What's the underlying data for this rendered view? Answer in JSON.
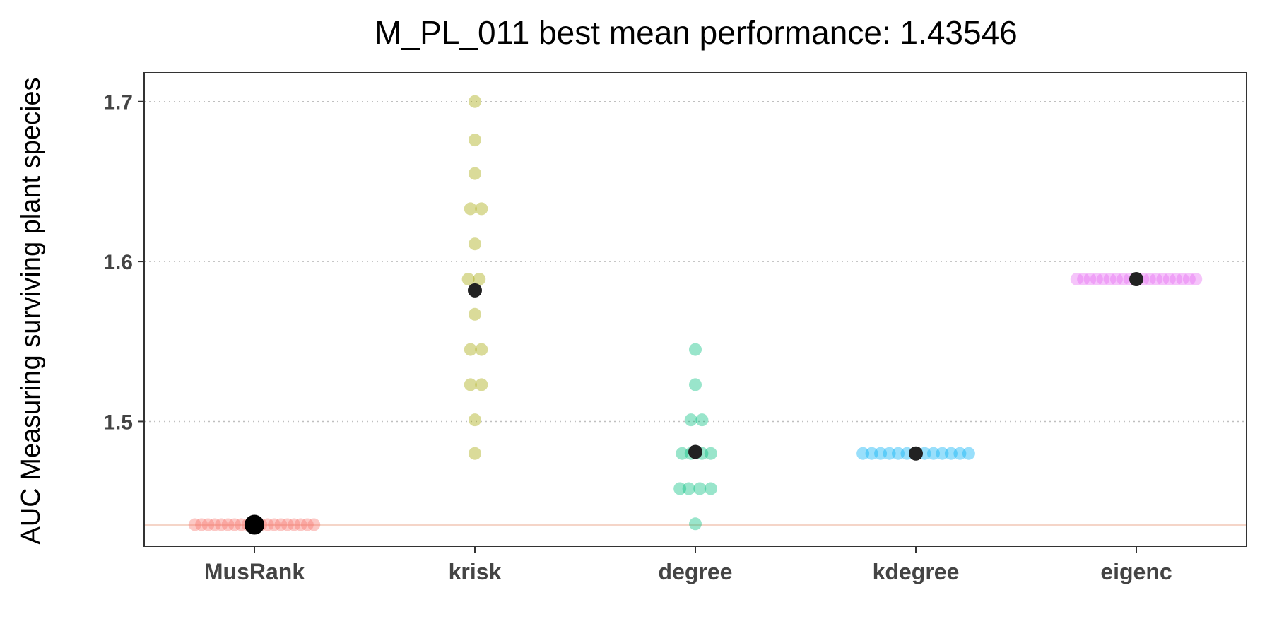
{
  "chart_data": {
    "type": "scatter",
    "title": "M_PL_011 best mean performance: 1.43546",
    "xlabel": "",
    "ylabel": "AUC Measuring surviving plant species",
    "ylim": [
      1.422,
      1.718
    ],
    "yticks": [
      1.5,
      1.6,
      1.7
    ],
    "ytick_labels": [
      "1.5",
      "1.6",
      "1.7"
    ],
    "grid": "horizontal-dotted",
    "reference_line": {
      "y": 1.43546,
      "color": "#f5d5c8"
    },
    "categories": [
      "MusRank",
      "krisk",
      "degree",
      "kdegree",
      "eigenc"
    ],
    "series": [
      {
        "category": "MusRank",
        "color": "#f8766d",
        "mean": 1.43546,
        "points": [
          [
            -0.27,
            1.4355
          ],
          [
            -0.24,
            1.4355
          ],
          [
            -0.21,
            1.4355
          ],
          [
            -0.18,
            1.4355
          ],
          [
            -0.15,
            1.4355
          ],
          [
            -0.12,
            1.4355
          ],
          [
            -0.09,
            1.4355
          ],
          [
            -0.06,
            1.4355
          ],
          [
            -0.03,
            1.4355
          ],
          [
            0.0,
            1.4355
          ],
          [
            0.03,
            1.4355
          ],
          [
            0.06,
            1.4355
          ],
          [
            0.09,
            1.4355
          ],
          [
            0.12,
            1.4355
          ],
          [
            0.15,
            1.4355
          ],
          [
            0.18,
            1.4355
          ],
          [
            0.21,
            1.4355
          ],
          [
            0.24,
            1.4355
          ],
          [
            0.27,
            1.4355
          ]
        ]
      },
      {
        "category": "krisk",
        "color": "#a3a500",
        "mean": 1.582,
        "points": [
          [
            0.0,
            1.7
          ],
          [
            0.0,
            1.676
          ],
          [
            0.0,
            1.655
          ],
          [
            -0.02,
            1.633
          ],
          [
            0.03,
            1.633
          ],
          [
            0.0,
            1.611
          ],
          [
            -0.03,
            1.589
          ],
          [
            0.02,
            1.589
          ],
          [
            0.0,
            1.567
          ],
          [
            -0.02,
            1.545
          ],
          [
            0.03,
            1.545
          ],
          [
            -0.02,
            1.523
          ],
          [
            0.03,
            1.523
          ],
          [
            0.0,
            1.501
          ],
          [
            0.0,
            1.48
          ]
        ]
      },
      {
        "category": "degree",
        "color": "#00bf7d",
        "mean": 1.481,
        "points": [
          [
            0.0,
            1.545
          ],
          [
            0.0,
            1.523
          ],
          [
            -0.02,
            1.501
          ],
          [
            0.03,
            1.501
          ],
          [
            -0.06,
            1.48
          ],
          [
            -0.02,
            1.48
          ],
          [
            0.03,
            1.48
          ],
          [
            0.07,
            1.48
          ],
          [
            -0.07,
            1.458
          ],
          [
            -0.03,
            1.458
          ],
          [
            0.02,
            1.458
          ],
          [
            0.07,
            1.458
          ],
          [
            0.0,
            1.436
          ]
        ]
      },
      {
        "category": "kdegree",
        "color": "#00b0f6",
        "mean": 1.48,
        "points": [
          [
            -0.24,
            1.48
          ],
          [
            -0.2,
            1.48
          ],
          [
            -0.16,
            1.48
          ],
          [
            -0.12,
            1.48
          ],
          [
            -0.08,
            1.48
          ],
          [
            -0.04,
            1.48
          ],
          [
            0.0,
            1.48
          ],
          [
            0.04,
            1.48
          ],
          [
            0.08,
            1.48
          ],
          [
            0.12,
            1.48
          ],
          [
            0.16,
            1.48
          ],
          [
            0.2,
            1.48
          ],
          [
            0.24,
            1.48
          ]
        ]
      },
      {
        "category": "eigenc",
        "color": "#e76bf3",
        "mean": 1.589,
        "points": [
          [
            -0.27,
            1.589
          ],
          [
            -0.24,
            1.589
          ],
          [
            -0.21,
            1.589
          ],
          [
            -0.18,
            1.589
          ],
          [
            -0.15,
            1.589
          ],
          [
            -0.12,
            1.589
          ],
          [
            -0.09,
            1.589
          ],
          [
            -0.06,
            1.589
          ],
          [
            -0.03,
            1.589
          ],
          [
            0.0,
            1.589
          ],
          [
            0.03,
            1.589
          ],
          [
            0.06,
            1.589
          ],
          [
            0.09,
            1.589
          ],
          [
            0.12,
            1.589
          ],
          [
            0.15,
            1.589
          ],
          [
            0.18,
            1.589
          ],
          [
            0.21,
            1.589
          ],
          [
            0.24,
            1.589
          ],
          [
            0.27,
            1.589
          ]
        ]
      }
    ]
  }
}
